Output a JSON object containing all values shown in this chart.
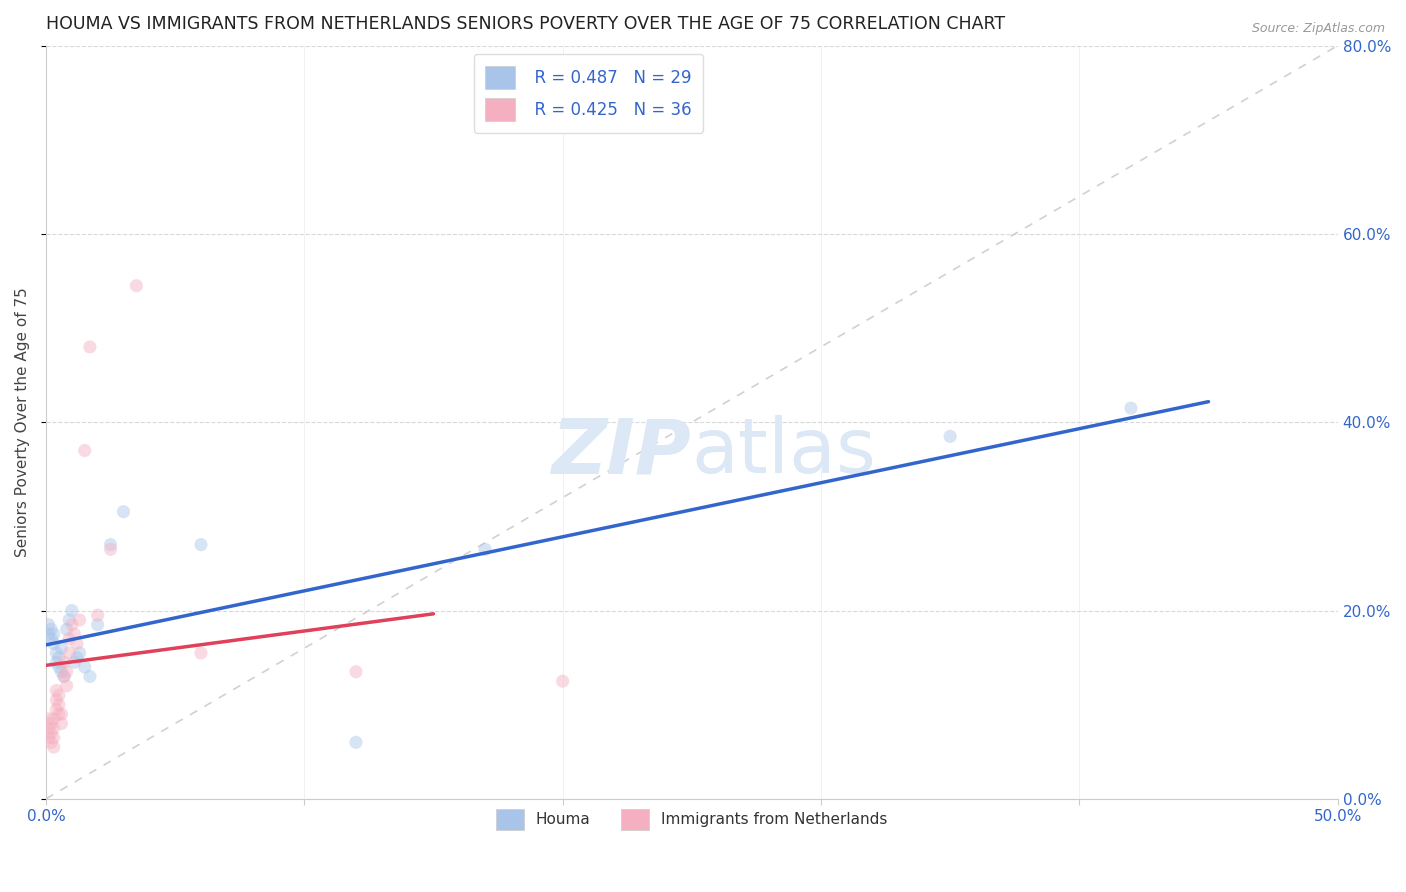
{
  "title": "HOUMA VS IMMIGRANTS FROM NETHERLANDS SENIORS POVERTY OVER THE AGE OF 75 CORRELATION CHART",
  "source": "Source: ZipAtlas.com",
  "ylabel": "Seniors Poverty Over the Age of 75",
  "xlim": [
    0,
    0.5
  ],
  "ylim": [
    0,
    0.8
  ],
  "xticks": [
    0.0,
    0.1,
    0.2,
    0.3,
    0.4,
    0.5
  ],
  "xtick_labels_show": [
    "0.0%",
    "",
    "",
    "",
    "",
    "50.0%"
  ],
  "yticks": [
    0.0,
    0.2,
    0.4,
    0.6,
    0.8
  ],
  "ytick_labels_right": [
    "0.0%",
    "20.0%",
    "40.0%",
    "60.0%",
    "80.0%"
  ],
  "houma_color": "#a8c4e8",
  "netherlands_color": "#f4afc0",
  "houma_line_color": "#3366cc",
  "netherlands_line_color": "#e0405a",
  "legend_label_houma": "Houma",
  "legend_label_netherlands": "Immigrants from Netherlands",
  "houma_x": [
    0.001,
    0.001,
    0.002,
    0.002,
    0.003,
    0.003,
    0.004,
    0.004,
    0.005,
    0.005,
    0.006,
    0.006,
    0.007,
    0.008,
    0.009,
    0.01,
    0.011,
    0.012,
    0.013,
    0.015,
    0.017,
    0.02,
    0.025,
    0.03,
    0.06,
    0.12,
    0.17,
    0.35,
    0.42
  ],
  "houma_y": [
    0.175,
    0.185,
    0.17,
    0.18,
    0.165,
    0.175,
    0.155,
    0.145,
    0.14,
    0.15,
    0.16,
    0.135,
    0.13,
    0.18,
    0.19,
    0.2,
    0.145,
    0.15,
    0.155,
    0.14,
    0.13,
    0.185,
    0.27,
    0.305,
    0.27,
    0.06,
    0.265,
    0.385,
    0.415
  ],
  "netherlands_x": [
    0.001,
    0.001,
    0.001,
    0.002,
    0.002,
    0.002,
    0.003,
    0.003,
    0.003,
    0.003,
    0.004,
    0.004,
    0.004,
    0.005,
    0.005,
    0.005,
    0.006,
    0.006,
    0.007,
    0.007,
    0.008,
    0.008,
    0.009,
    0.009,
    0.01,
    0.011,
    0.012,
    0.013,
    0.015,
    0.017,
    0.02,
    0.025,
    0.035,
    0.06,
    0.12,
    0.2
  ],
  "netherlands_y": [
    0.065,
    0.075,
    0.085,
    0.06,
    0.07,
    0.08,
    0.055,
    0.065,
    0.075,
    0.085,
    0.095,
    0.105,
    0.115,
    0.09,
    0.1,
    0.11,
    0.08,
    0.09,
    0.13,
    0.145,
    0.12,
    0.135,
    0.155,
    0.17,
    0.185,
    0.175,
    0.165,
    0.19,
    0.37,
    0.48,
    0.195,
    0.265,
    0.545,
    0.155,
    0.135,
    0.125
  ],
  "houma_R": "R = 0.487",
  "houma_N": "N = 29",
  "netherlands_R": "R = 0.425",
  "netherlands_N": "N = 36",
  "background_color": "#ffffff",
  "grid_color": "#d0d0d0",
  "marker_size": 90,
  "marker_alpha": 0.45,
  "watermark_color": "#dce8f5",
  "watermark_fontsize": 55
}
